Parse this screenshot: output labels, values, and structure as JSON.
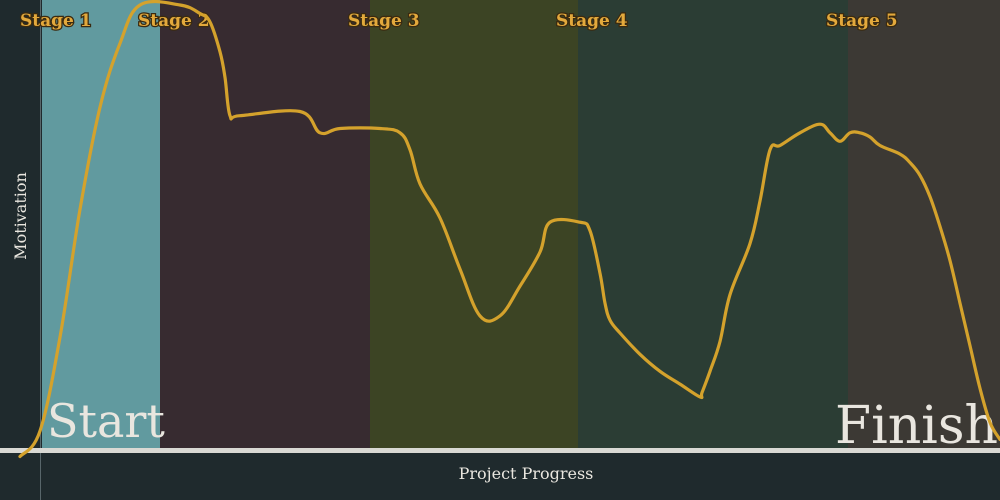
{
  "chart_data": {
    "type": "line",
    "title": "",
    "xlabel": "Project Progress",
    "ylabel": "Motivation",
    "xlim": [
      0,
      100
    ],
    "ylim": [
      0,
      100
    ],
    "grid": false,
    "legend": "none",
    "stages": [
      {
        "label": "Stage 1",
        "start": 4.2,
        "end": 16.0,
        "color": "#619a9f"
      },
      {
        "label": "Stage 2",
        "start": 16.0,
        "end": 37.0,
        "color": "#372b30"
      },
      {
        "label": "Stage 3",
        "start": 37.0,
        "end": 57.8,
        "color": "#3c4424"
      },
      {
        "label": "Stage 4",
        "start": 57.8,
        "end": 84.8,
        "color": "#2b3d34"
      },
      {
        "label": "Stage 5",
        "start": 84.8,
        "end": 100.0,
        "color": "#3c3934"
      }
    ],
    "start_label": "Start",
    "finish_label": "Finish",
    "series": [
      {
        "color": "#d4a22c",
        "x": [
          2,
          4,
          6,
          8,
          10,
          12,
          14,
          18,
          20,
          21,
          22,
          22.5,
          23,
          24,
          30,
          32,
          34,
          38,
          40,
          41,
          42,
          44,
          46,
          48,
          50,
          52,
          54,
          55,
          58,
          59,
          60,
          60.5,
          61,
          62,
          64,
          66,
          68,
          70,
          70.2,
          71,
          72,
          73,
          75,
          76,
          77,
          78,
          80,
          82,
          83,
          84,
          85,
          86,
          87,
          88,
          90,
          91,
          92,
          93,
          94,
          95,
          96,
          97,
          98,
          99,
          100
        ],
        "y": [
          -2,
          4,
          26,
          56,
          80,
          95,
          104,
          104,
          102,
          100,
          93,
          87,
          78,
          78,
          79,
          74,
          75,
          75,
          74,
          70,
          62,
          54,
          42,
          31,
          31,
          38,
          46,
          53,
          53,
          51,
          41,
          34,
          30,
          27,
          22,
          18,
          15,
          12,
          13,
          18,
          25,
          36,
          48,
          58,
          70,
          71,
          74,
          76,
          74,
          72,
          74,
          74,
          73,
          71,
          69,
          67,
          64,
          59,
          52,
          44,
          34,
          24,
          14,
          6,
          2
        ]
      }
    ]
  }
}
